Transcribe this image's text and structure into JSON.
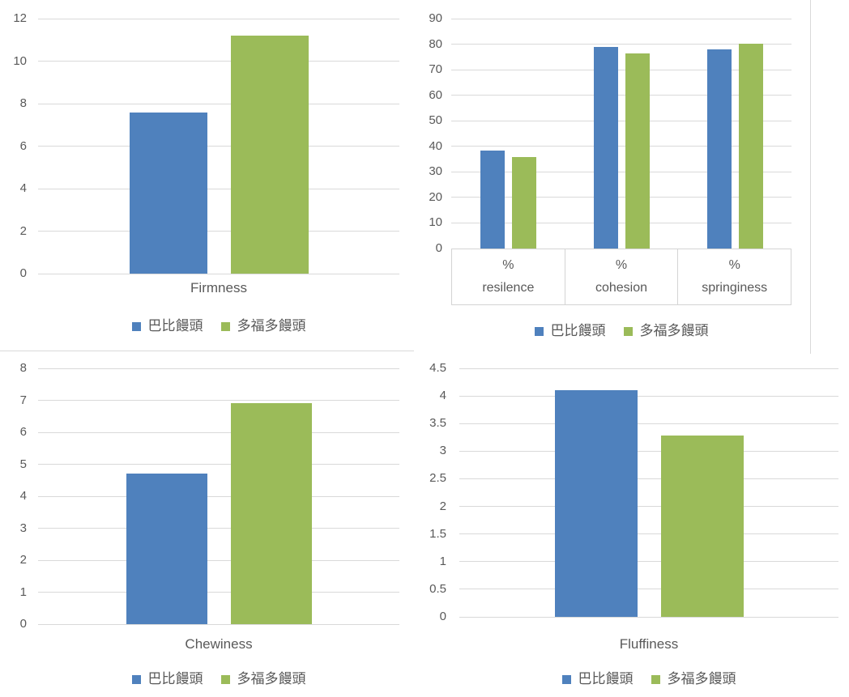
{
  "colors": {
    "series_blue": "#4F81BD",
    "series_green": "#9BBB59",
    "gridline": "#D9D9D9",
    "text": "#595959"
  },
  "chart_data": [
    {
      "type": "bar",
      "title": "",
      "categories": [
        "Firmness"
      ],
      "series": [
        {
          "name": "巴比饅頭",
          "color": "#4F81BD",
          "values": [
            7.6
          ]
        },
        {
          "name": "多福多饅頭",
          "color": "#9BBB59",
          "values": [
            11.2
          ]
        }
      ],
      "ylim": [
        0,
        12
      ],
      "ytick_step": 2,
      "yticks": [
        "0",
        "2",
        "4",
        "6",
        "8",
        "10",
        "12"
      ],
      "xlabel": "Firmness",
      "grid": true,
      "legend_position": "bottom"
    },
    {
      "type": "bar",
      "title": "",
      "categories": [
        "% resilence",
        "% cohesion",
        "% springiness"
      ],
      "category_label_lines": [
        [
          "%",
          "resilence"
        ],
        [
          "%",
          "cohesion"
        ],
        [
          "%",
          "springiness"
        ]
      ],
      "series": [
        {
          "name": "巴比饅頭",
          "color": "#4F81BD",
          "values": [
            38.5,
            79,
            78
          ]
        },
        {
          "name": "多福多饅頭",
          "color": "#9BBB59",
          "values": [
            35.8,
            76.5,
            80.3
          ]
        }
      ],
      "ylim": [
        0,
        90
      ],
      "ytick_step": 10,
      "yticks": [
        "0",
        "10",
        "20",
        "30",
        "40",
        "50",
        "60",
        "70",
        "80",
        "90"
      ],
      "xlabel": "",
      "grid": true,
      "legend_position": "bottom"
    },
    {
      "type": "bar",
      "title": "",
      "categories": [
        "Chewiness"
      ],
      "series": [
        {
          "name": "巴比饅頭",
          "color": "#4F81BD",
          "values": [
            4.7
          ]
        },
        {
          "name": "多福多饅頭",
          "color": "#9BBB59",
          "values": [
            6.9
          ]
        }
      ],
      "ylim": [
        0,
        8
      ],
      "ytick_step": 1,
      "yticks": [
        "0",
        "1",
        "2",
        "3",
        "4",
        "5",
        "6",
        "7",
        "8"
      ],
      "xlabel": "Chewiness",
      "grid": true,
      "legend_position": "bottom"
    },
    {
      "type": "bar",
      "title": "",
      "categories": [
        "Fluffiness"
      ],
      "series": [
        {
          "name": "巴比饅頭",
          "color": "#4F81BD",
          "values": [
            4.1
          ]
        },
        {
          "name": "多福多饅頭",
          "color": "#9BBB59",
          "values": [
            3.28
          ]
        }
      ],
      "ylim": [
        0,
        4.5
      ],
      "ytick_step": 0.5,
      "yticks": [
        "0",
        "0.5",
        "1",
        "1.5",
        "2",
        "2.5",
        "3",
        "3.5",
        "4",
        "4.5"
      ],
      "xlabel": "Fluffiness",
      "grid": true,
      "legend_position": "bottom"
    }
  ]
}
